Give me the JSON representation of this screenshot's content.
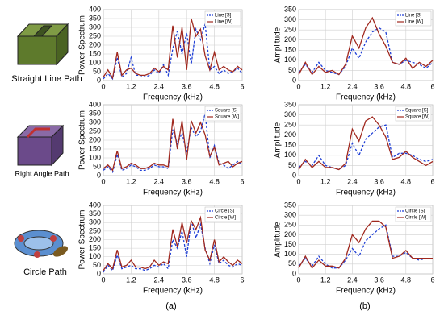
{
  "captions": [
    "Straight Line Path",
    "Right Angle Path",
    "Circle Path"
  ],
  "panel_labels": [
    "(a)",
    "(b)"
  ],
  "chart_data": [
    {
      "type": "line",
      "xlabel": "Frequency (kHz)",
      "ylabel": "Power Spectrum",
      "xlim": [
        0,
        6
      ],
      "ylim": [
        0,
        400
      ],
      "xticks": [
        0,
        1.2,
        2.4,
        3.6,
        4.8,
        6
      ],
      "yticks": [
        0,
        50,
        100,
        150,
        200,
        250,
        300,
        350,
        400
      ],
      "grid": true,
      "legend": "upper right",
      "x": [
        0,
        0.2,
        0.4,
        0.6,
        0.8,
        1,
        1.2,
        1.4,
        1.6,
        1.8,
        2,
        2.2,
        2.4,
        2.6,
        2.8,
        3,
        3.2,
        3.4,
        3.6,
        3.8,
        4,
        4.2,
        4.4,
        4.6,
        4.8,
        5,
        5.2,
        5.4,
        5.6,
        5.8,
        6
      ],
      "series": [
        {
          "name": "Line [S]",
          "color": "#1f3fd6",
          "linestyle": "dashed",
          "values": [
            10,
            40,
            10,
            130,
            20,
            40,
            130,
            30,
            30,
            20,
            30,
            60,
            40,
            90,
            30,
            180,
            280,
            150,
            270,
            90,
            290,
            230,
            320,
            60,
            80,
            40,
            60,
            40,
            50,
            70,
            40
          ]
        },
        {
          "name": "Line [W]",
          "color": "#a0281e",
          "linestyle": "solid",
          "values": [
            20,
            60,
            15,
            160,
            30,
            60,
            70,
            40,
            30,
            30,
            40,
            70,
            50,
            80,
            60,
            310,
            130,
            300,
            60,
            350,
            250,
            290,
            140,
            60,
            160,
            60,
            80,
            60,
            50,
            80,
            60
          ]
        }
      ]
    },
    {
      "type": "line",
      "xlabel": "Frequency (kHz)",
      "ylabel": "Amplitude",
      "xlim": [
        0,
        6
      ],
      "ylim": [
        0,
        350
      ],
      "xticks": [
        0,
        1.2,
        2.4,
        3.6,
        4.8,
        6
      ],
      "yticks": [
        0,
        50,
        100,
        150,
        200,
        250,
        300,
        350
      ],
      "grid": true,
      "legend": "upper right",
      "x": [
        0,
        0.3,
        0.6,
        0.9,
        1.2,
        1.5,
        1.8,
        2.1,
        2.4,
        2.7,
        3,
        3.3,
        3.6,
        3.9,
        4.2,
        4.5,
        4.8,
        5.1,
        5.4,
        5.7,
        6
      ],
      "series": [
        {
          "name": "Line [S]",
          "color": "#1f3fd6",
          "linestyle": "dashed",
          "values": [
            40,
            80,
            40,
            90,
            50,
            40,
            30,
            70,
            160,
            110,
            190,
            240,
            260,
            240,
            90,
            80,
            100,
            90,
            80,
            60,
            90
          ]
        },
        {
          "name": "Line [W]",
          "color": "#a0281e",
          "linestyle": "solid",
          "values": [
            30,
            90,
            30,
            70,
            40,
            50,
            30,
            80,
            220,
            160,
            260,
            310,
            230,
            170,
            90,
            80,
            110,
            60,
            90,
            70,
            100
          ]
        }
      ]
    },
    {
      "type": "line",
      "xlabel": "Frequency (kHz)",
      "ylabel": "Power Spectrum",
      "xlim": [
        0,
        6
      ],
      "ylim": [
        0,
        400
      ],
      "xticks": [
        0,
        1.2,
        2.4,
        3.6,
        4.8,
        6
      ],
      "yticks": [
        0,
        50,
        100,
        150,
        200,
        250,
        300,
        350,
        400
      ],
      "grid": true,
      "legend": "upper right",
      "x": [
        0,
        0.2,
        0.4,
        0.6,
        0.8,
        1,
        1.2,
        1.4,
        1.6,
        1.8,
        2,
        2.2,
        2.4,
        2.6,
        2.8,
        3,
        3.2,
        3.4,
        3.6,
        3.8,
        4,
        4.2,
        4.4,
        4.6,
        4.8,
        5,
        5.2,
        5.4,
        5.6,
        5.8,
        6
      ],
      "series": [
        {
          "name": "Square [S]",
          "color": "#1f3fd6",
          "linestyle": "dashed",
          "values": [
            30,
            50,
            20,
            120,
            30,
            40,
            60,
            50,
            30,
            30,
            40,
            60,
            50,
            50,
            40,
            260,
            180,
            240,
            130,
            270,
            220,
            250,
            350,
            100,
            170,
            70,
            60,
            40,
            60,
            80,
            60
          ]
        },
        {
          "name": "Square [W]",
          "color": "#a0281e",
          "linestyle": "solid",
          "values": [
            40,
            60,
            30,
            140,
            40,
            50,
            70,
            60,
            40,
            40,
            50,
            70,
            60,
            60,
            50,
            320,
            150,
            310,
            90,
            310,
            240,
            300,
            230,
            110,
            160,
            60,
            70,
            80,
            50,
            70,
            80
          ]
        }
      ]
    },
    {
      "type": "line",
      "xlabel": "Frequency (kHz)",
      "ylabel": "Amplitude",
      "xlim": [
        0,
        6
      ],
      "ylim": [
        0,
        350
      ],
      "xticks": [
        0,
        1.2,
        2.4,
        3.6,
        4.8,
        6
      ],
      "yticks": [
        0,
        50,
        100,
        150,
        200,
        250,
        300,
        350
      ],
      "grid": true,
      "legend": "upper right",
      "x": [
        0,
        0.3,
        0.6,
        0.9,
        1.2,
        1.5,
        1.8,
        2.1,
        2.4,
        2.7,
        3,
        3.3,
        3.6,
        3.9,
        4.2,
        4.5,
        4.8,
        5.1,
        5.4,
        5.7,
        6
      ],
      "series": [
        {
          "name": "Square [S]",
          "color": "#1f3fd6",
          "linestyle": "dashed",
          "values": [
            40,
            70,
            50,
            100,
            50,
            40,
            30,
            50,
            160,
            100,
            180,
            210,
            240,
            250,
            90,
            110,
            110,
            100,
            80,
            70,
            80
          ]
        },
        {
          "name": "Square [W]",
          "color": "#a0281e",
          "linestyle": "solid",
          "values": [
            30,
            80,
            40,
            70,
            40,
            40,
            30,
            60,
            230,
            170,
            270,
            290,
            250,
            190,
            80,
            90,
            120,
            90,
            70,
            50,
            70
          ]
        }
      ]
    },
    {
      "type": "line",
      "xlabel": "Frequency (kHz)",
      "ylabel": "Power Spectrum",
      "xlim": [
        0,
        6
      ],
      "ylim": [
        0,
        400
      ],
      "xticks": [
        0,
        1.2,
        2.4,
        3.6,
        4.8,
        6
      ],
      "yticks": [
        0,
        50,
        100,
        150,
        200,
        250,
        300,
        350,
        400
      ],
      "grid": true,
      "legend": "upper right",
      "x": [
        0,
        0.2,
        0.4,
        0.6,
        0.8,
        1,
        1.2,
        1.4,
        1.6,
        1.8,
        2,
        2.2,
        2.4,
        2.6,
        2.8,
        3,
        3.2,
        3.4,
        3.6,
        3.8,
        4,
        4.2,
        4.4,
        4.6,
        4.8,
        5,
        5.2,
        5.4,
        5.6,
        5.8,
        6
      ],
      "series": [
        {
          "name": "Circle [S]",
          "color": "#1f3fd6",
          "linestyle": "dashed",
          "values": [
            10,
            50,
            20,
            110,
            30,
            40,
            50,
            30,
            30,
            20,
            30,
            50,
            40,
            60,
            30,
            200,
            150,
            250,
            100,
            310,
            210,
            290,
            150,
            60,
            170,
            60,
            80,
            50,
            40,
            60,
            50
          ]
        },
        {
          "name": "Circle [W]",
          "color": "#a0281e",
          "linestyle": "solid",
          "values": [
            20,
            60,
            30,
            140,
            40,
            50,
            80,
            40,
            40,
            30,
            40,
            80,
            50,
            70,
            60,
            260,
            160,
            300,
            180,
            310,
            260,
            330,
            140,
            80,
            200,
            70,
            100,
            70,
            50,
            80,
            60
          ]
        }
      ]
    },
    {
      "type": "line",
      "xlabel": "Frequency (kHz)",
      "ylabel": "Amplitude",
      "xlim": [
        0,
        6
      ],
      "ylim": [
        0,
        350
      ],
      "xticks": [
        0,
        1.2,
        2.4,
        3.6,
        4.8,
        6
      ],
      "yticks": [
        0,
        50,
        100,
        150,
        200,
        250,
        300,
        350
      ],
      "grid": true,
      "legend": "upper right",
      "x": [
        0,
        0.3,
        0.6,
        0.9,
        1.2,
        1.5,
        1.8,
        2.1,
        2.4,
        2.7,
        3,
        3.3,
        3.6,
        3.9,
        4.2,
        4.5,
        4.8,
        5.1,
        5.4,
        5.7,
        6
      ],
      "series": [
        {
          "name": "Circle [S]",
          "color": "#1f3fd6",
          "linestyle": "dashed",
          "values": [
            40,
            80,
            40,
            90,
            50,
            30,
            30,
            70,
            130,
            90,
            170,
            200,
            230,
            250,
            90,
            90,
            110,
            80,
            70,
            80,
            80
          ]
        },
        {
          "name": "Circle [W]",
          "color": "#a0281e",
          "linestyle": "solid",
          "values": [
            30,
            90,
            30,
            70,
            40,
            40,
            30,
            80,
            200,
            160,
            230,
            270,
            270,
            240,
            80,
            90,
            120,
            80,
            80,
            80,
            80
          ]
        }
      ]
    }
  ]
}
